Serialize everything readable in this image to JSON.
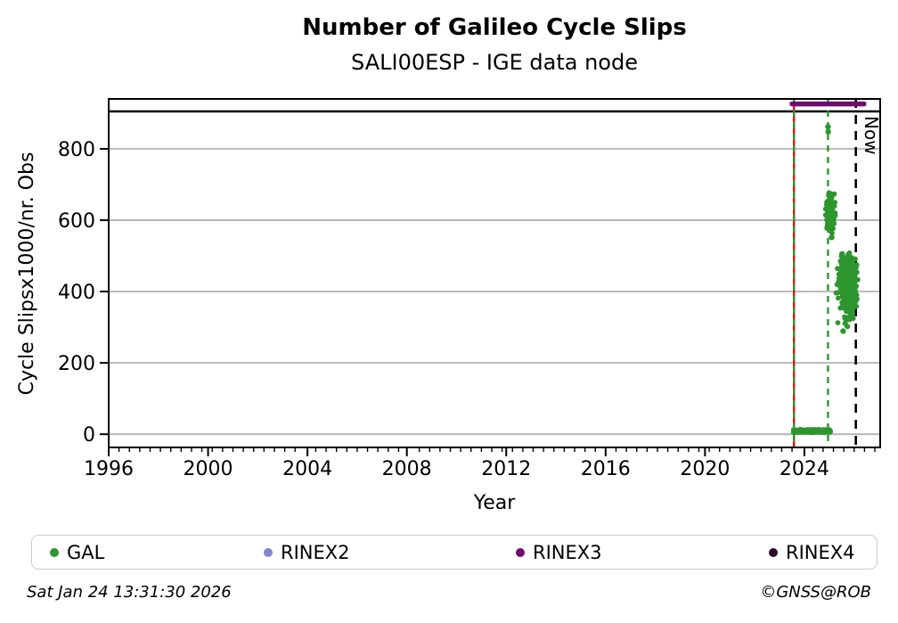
{
  "chart_data": {
    "type": "scatter",
    "title": "Number of Galileo Cycle Slips",
    "subtitle": "SALI00ESP - IGE data node",
    "xlabel": "Year",
    "ylabel": "Cycle Slipsx1000/nr. Obs",
    "xlim": [
      1996,
      2027.05
    ],
    "ylim": [
      -37,
      940
    ],
    "x_major_ticks": [
      1996,
      2000,
      2004,
      2008,
      2012,
      2016,
      2020,
      2024
    ],
    "x_minor_step_years": 0.4167,
    "y_major_ticks": [
      0,
      200,
      400,
      600,
      800
    ],
    "grid": "horizontal",
    "grid_color": "#b2b2b2",
    "frame_color": "#000000",
    "top_rule_value": 905,
    "rinex3_period_bar": {
      "value": 926,
      "x_start": 2023.5,
      "x_end": 2026.4,
      "color": "#6e0a73",
      "label": "RINEX3"
    },
    "event_lines": [
      {
        "x": 2023.58,
        "color": "#dd1515",
        "style": "solid"
      },
      {
        "x": 2023.58,
        "color": "#2e962e",
        "style": "dashed"
      },
      {
        "x": 2024.95,
        "color": "#2e962e",
        "style": "dashed"
      }
    ],
    "now_line": {
      "x": 2026.07,
      "label": "Now",
      "color": "#000000",
      "style": "dashed"
    },
    "series": [
      {
        "name": "GAL",
        "color": "#2e962e",
        "clusters": [
          {
            "kind": "band",
            "x_start": 2023.53,
            "x_end": 2025.07,
            "y_center": 9,
            "y_spread": 5.5,
            "n": 280
          },
          {
            "kind": "gauss",
            "cx": 2025.04,
            "cy": 618,
            "sx": 0.075,
            "sy": 26,
            "x_min": 2024.82,
            "x_max": 2025.3,
            "y_min": 562,
            "y_max": 678,
            "n": 175
          },
          {
            "kind": "gauss",
            "cx": 2025.72,
            "cy": 420,
            "sx": 0.155,
            "sy": 41,
            "x_min": 2025.12,
            "x_max": 2026.17,
            "y_min": 299,
            "y_max": 514,
            "n": 460
          }
        ],
        "outlier_points": [
          [
            2024.95,
            862
          ],
          [
            2024.96,
            848
          ],
          [
            2025.1,
            552
          ],
          [
            2025.56,
            289
          ]
        ]
      }
    ],
    "legend": {
      "items": [
        {
          "label": "GAL",
          "color": "#2e962e"
        },
        {
          "label": "RINEX2",
          "color": "#8585cd"
        },
        {
          "label": "RINEX3",
          "color": "#730870"
        },
        {
          "label": "RINEX4",
          "color": "#2d0a2e"
        }
      ]
    }
  },
  "footer": {
    "timestamp": "Sat Jan 24 13:31:30 2026",
    "credit": "©GNSS@ROB"
  }
}
